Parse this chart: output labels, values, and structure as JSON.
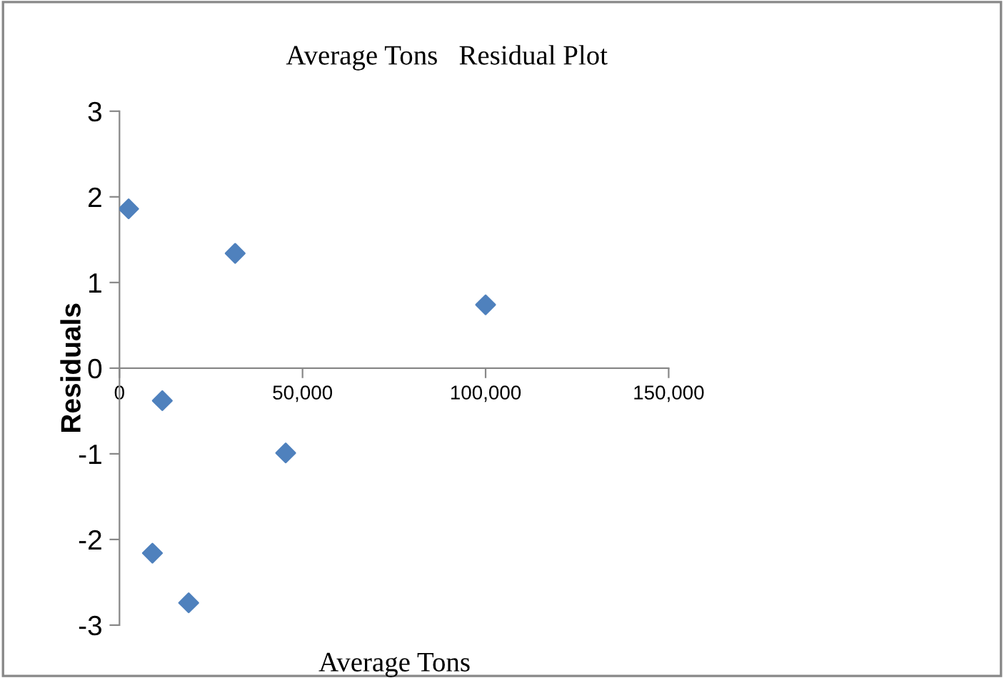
{
  "chart_data": {
    "type": "scatter",
    "title": "Average Tons   Residual Plot",
    "xlabel": "Average Tons",
    "ylabel": "Residuals",
    "x": [
      2500,
      31600,
      100000,
      11700,
      45400,
      9000,
      18900
    ],
    "series": [
      {
        "color": "#4f81bd",
        "values": [
          1.86,
          1.34,
          0.74,
          -0.38,
          -0.99,
          -2.16,
          -2.74
        ]
      }
    ],
    "marker": "diamond",
    "grid": false,
    "legend": false,
    "xlim": [
      0,
      150000
    ],
    "xticks": [
      0,
      {
        "value": 50000,
        "label": "50,000"
      },
      {
        "value": 100000,
        "label": "100,000"
      },
      {
        "value": 150000,
        "label": "150,000"
      }
    ],
    "ylim": [
      -3,
      3
    ],
    "yticks": [
      -3,
      -2,
      -1,
      0,
      1,
      2,
      3
    ]
  }
}
